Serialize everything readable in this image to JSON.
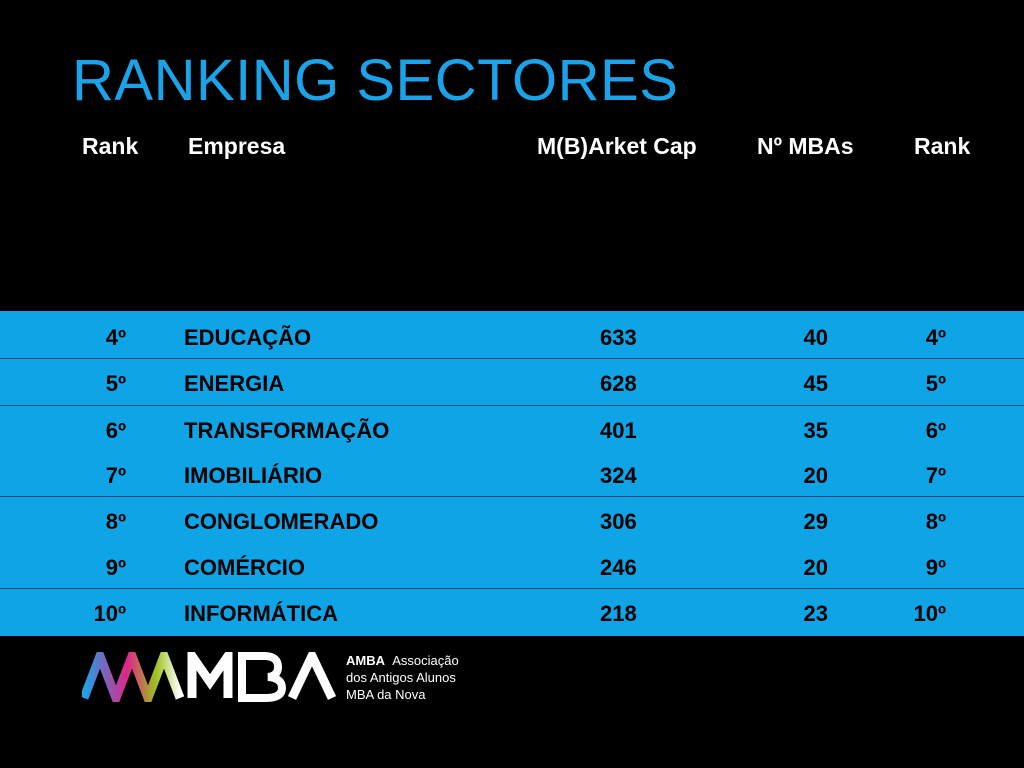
{
  "title": "RANKING SECTORES",
  "headers": {
    "rank": "Rank",
    "empresa": "Empresa",
    "cap": "M(B)Arket Cap",
    "mbas": "Nº MBAs",
    "rank2": "Rank"
  },
  "rows": [
    {
      "rank": "4º",
      "name": "EDUCAÇÃO",
      "cap": "633",
      "mbas": "40",
      "rank2": "4º"
    },
    {
      "rank": "5º",
      "name": "ENERGIA",
      "cap": "628",
      "mbas": "45",
      "rank2": "5º"
    },
    {
      "rank": "6º",
      "name": "TRANSFORMAÇÃO",
      "cap": "401",
      "mbas": "35",
      "rank2": "6º"
    },
    {
      "rank": "7º",
      "name": "IMOBILIÁRIO",
      "cap": "324",
      "mbas": "20",
      "rank2": "7º"
    },
    {
      "rank": "8º",
      "name": "CONGLOMERADO",
      "cap": "306",
      "mbas": "29",
      "rank2": "8º"
    },
    {
      "rank": "9º",
      "name": "COMÉRCIO",
      "cap": "246",
      "mbas": "20",
      "rank2": "9º"
    },
    {
      "rank": "10º",
      "name": "INFORMÁTICA",
      "cap": "218",
      "mbas": "23",
      "rank2": "10º"
    }
  ],
  "logo": {
    "brand": "AMBA",
    "line1": "Associação",
    "line2": "dos Antigos Alunos",
    "line3": "MBA da Nova"
  },
  "colors": {
    "title": "#1aa3e8",
    "band": "#0ea4e6",
    "background": "#000000"
  }
}
